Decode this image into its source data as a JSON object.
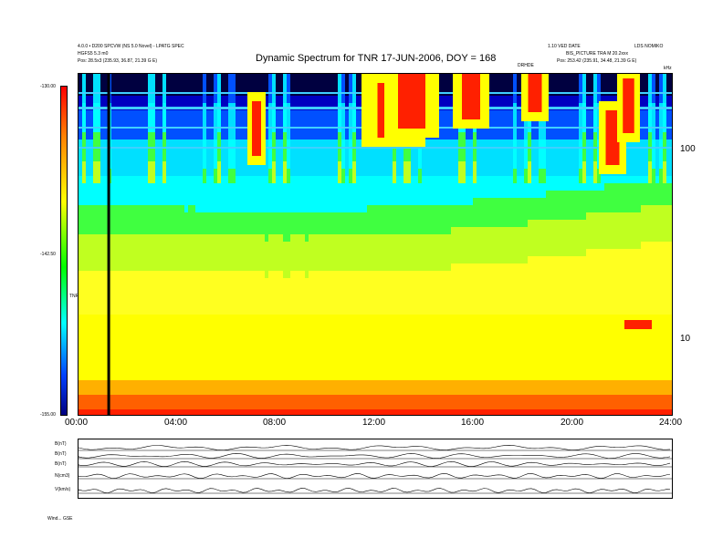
{
  "header": {
    "left_line1": "4.0.0 • D200 SPCVW (NS 5.0 Novel) - LPATG SPEC",
    "left_line2": "HGFS5 5.3 m0",
    "left_line3": "Pos: 28.5x3 (235.93, 36.87, 21.39 G E)",
    "right_line1": "1.10 VED DATE",
    "right_line1b": "LDS NOMIKO",
    "right_line2": "BIS_PICTURE TRA M 20.2xxx",
    "right_line3": "Pos: 253.42 (235.91, 34.48, 21.39 G E)",
    "right_units": "kHz",
    "mid_label": "DRHDE"
  },
  "chart_data": {
    "type": "heatmap",
    "title": "Dynamic Spectrum for TNR 17-JUN-2006, DOY = 168",
    "x_ticks": [
      "00:00",
      "04:00",
      "08:00",
      "12:00",
      "16:00",
      "20:00",
      "24:00"
    ],
    "x_range_hours": [
      0,
      24
    ],
    "y_scale": "log",
    "y_ticks_right": [
      "100",
      "10"
    ],
    "y_unit": "kHz",
    "colorbar_ticks": [
      "-130.00",
      "-142.50",
      "-155.00"
    ],
    "colorbar_label": "TNR",
    "marker_time_hours": 1.2,
    "colors": {
      "strong": "#ff0000",
      "mid": "#ffff00",
      "weak": "#00ffff",
      "low": "#0000c0",
      "floor": "#000000"
    }
  },
  "timeseries": {
    "labels": [
      "B(nT)",
      "B(nT)",
      "B(nT)",
      "N(cm3)",
      "V(km/s)"
    ],
    "bottom_left": "Wind... GSE"
  }
}
